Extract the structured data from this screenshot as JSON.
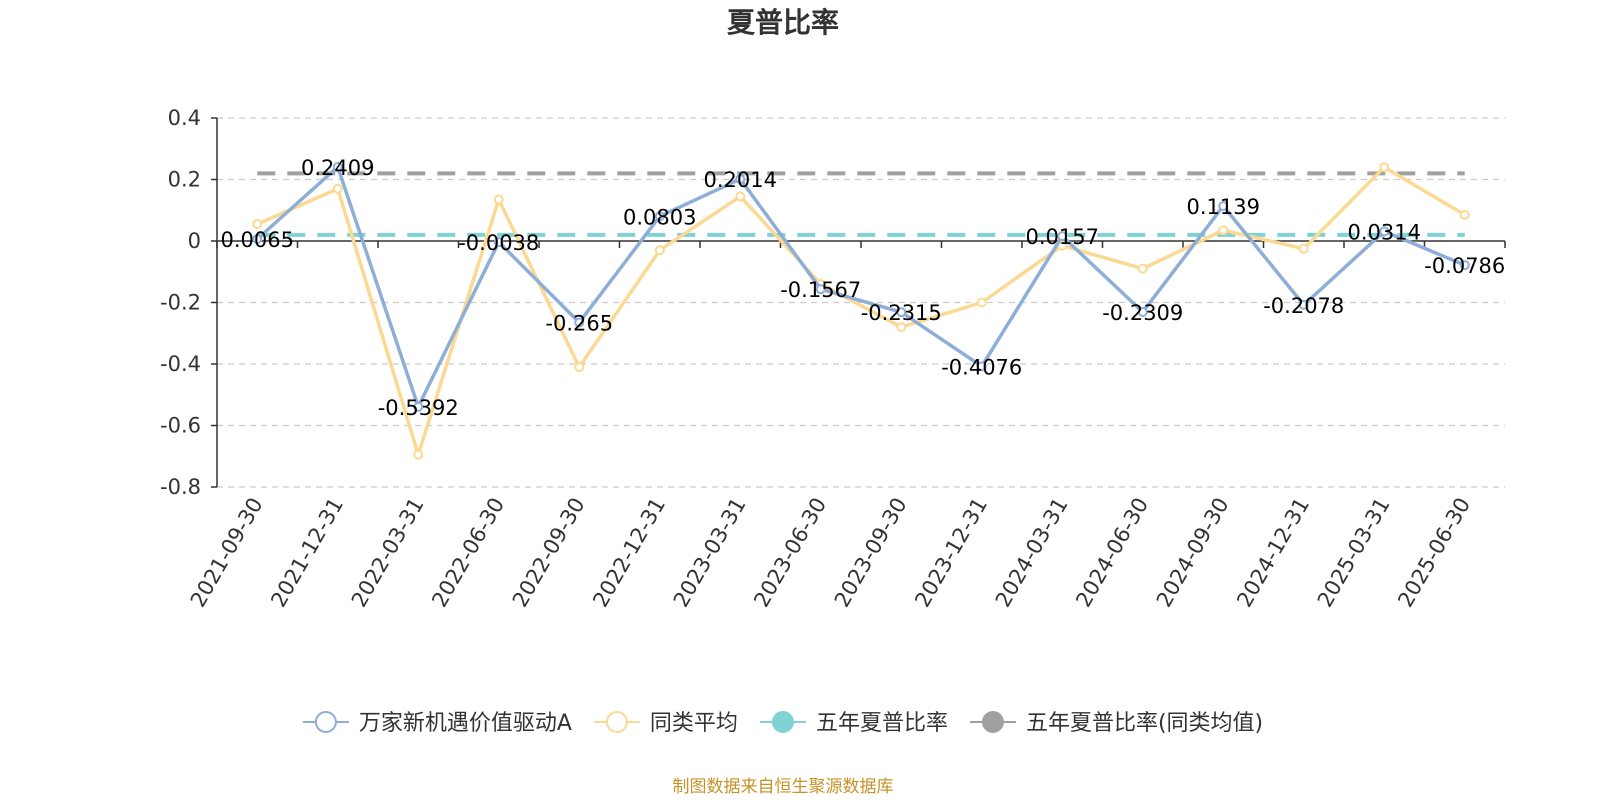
{
  "chart_data": {
    "type": "line",
    "title": "夏普比率",
    "categories": [
      "2021-09-30",
      "2021-12-31",
      "2022-03-31",
      "2022-06-30",
      "2022-09-30",
      "2022-12-31",
      "2023-03-31",
      "2023-06-30",
      "2023-09-30",
      "2023-12-31",
      "2024-03-31",
      "2024-06-30",
      "2024-09-30",
      "2024-12-31",
      "2025-03-31",
      "2025-06-30"
    ],
    "yticks": [
      "0.4",
      "0.2",
      "0",
      "-0.2",
      "-0.4",
      "-0.6",
      "-0.8"
    ],
    "ylim": [
      -0.8,
      0.4
    ],
    "grid": true,
    "legend_position": "bottom",
    "series": [
      {
        "name": "万家新机遇价值驱动A",
        "color": "#8eaed8",
        "values": [
          0.0065,
          0.2409,
          -0.5392,
          -0.0038,
          -0.265,
          0.0803,
          0.2014,
          -0.1567,
          -0.2315,
          -0.4076,
          0.0157,
          -0.2309,
          0.1139,
          -0.2078,
          0.0314,
          -0.0786
        ],
        "labels": [
          "0.0065",
          "0.2409",
          "-0.5392",
          "-0.0038",
          "-0.265",
          "0.0803",
          "0.2014",
          "-0.1567",
          "-0.2315",
          "-0.4076",
          "0.0157",
          "-0.2309",
          "0.1139",
          "-0.2078",
          "0.0314",
          "-0.0786"
        ]
      },
      {
        "name": "同类平均",
        "color": "#fcd993",
        "values": [
          0.055,
          0.17,
          -0.695,
          0.135,
          -0.41,
          -0.03,
          0.145,
          -0.14,
          -0.28,
          -0.2,
          -0.015,
          -0.09,
          0.035,
          -0.025,
          0.24,
          0.085
        ]
      },
      {
        "name": "五年夏普比率",
        "color": "#7fd3d5",
        "constant": 0.02
      },
      {
        "name": "五年夏普比率(同类均值)",
        "color": "#a0a0a0",
        "constant": 0.22
      }
    ],
    "source": "制图数据来自恒生聚源数据库"
  }
}
